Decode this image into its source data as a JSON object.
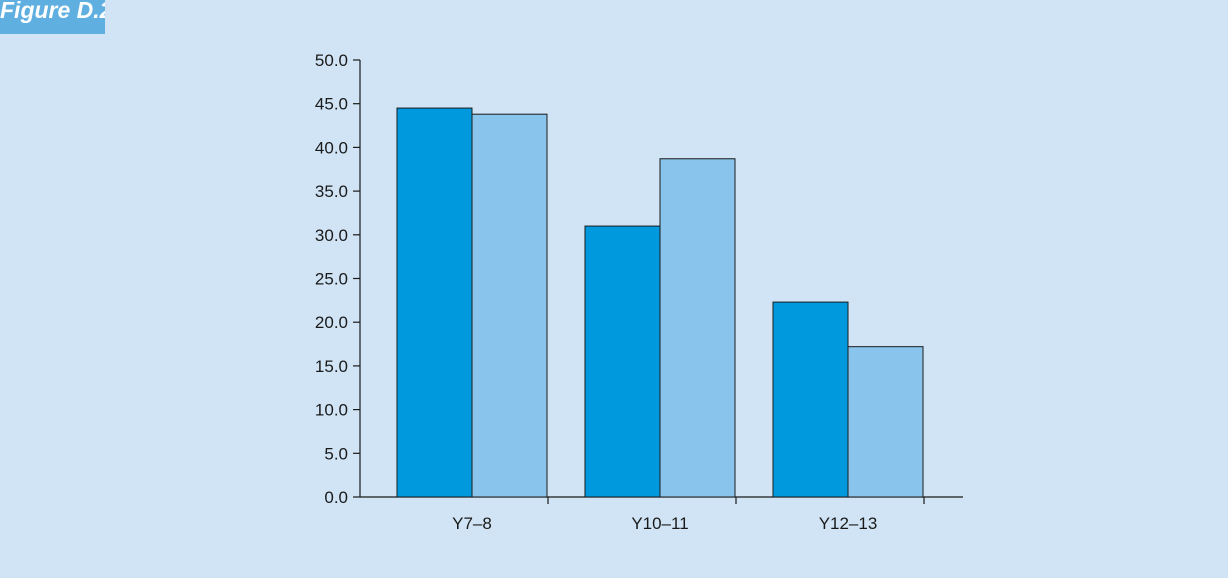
{
  "figure": {
    "label": "Figure D.2"
  },
  "colors": {
    "background": "#d0e4f5",
    "tab": "#5fb0e0",
    "series_1": "#0099dd",
    "series_2": "#89c4ec",
    "axis": "#1a1a1a"
  },
  "chart_data": {
    "type": "bar",
    "categories": [
      "Y7–8",
      "Y10–11",
      "Y12–13"
    ],
    "series": [
      {
        "values": [
          44.5,
          31.0,
          22.3
        ]
      },
      {
        "values": [
          43.8,
          38.7,
          17.2
        ]
      }
    ],
    "y_ticks": [
      "0.0",
      "5.0",
      "10.0",
      "15.0",
      "20.0",
      "25.0",
      "30.0",
      "35.0",
      "40.0",
      "45.0",
      "50.0"
    ],
    "ylim": [
      0,
      50
    ],
    "grid": false,
    "legend": "none",
    "title": "",
    "xlabel": "",
    "ylabel": ""
  }
}
